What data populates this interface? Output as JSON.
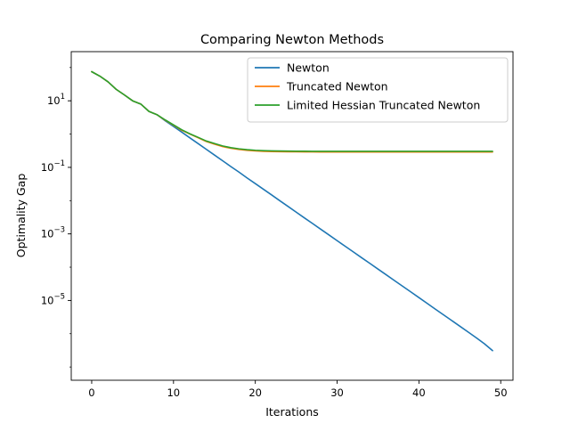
{
  "chart_data": {
    "type": "line",
    "title": "Comparing Newton Methods",
    "xlabel": "Iterations",
    "ylabel": "Optimality Gap",
    "yscale": "log",
    "xlim": [
      -2.5,
      51.5
    ],
    "ylim": [
      4e-08,
      300
    ],
    "grid": false,
    "legend_position": "top-right",
    "xticks": [
      0,
      10,
      20,
      30,
      40,
      50
    ],
    "xtick_labels": [
      "0",
      "10",
      "20",
      "30",
      "40",
      "50"
    ],
    "yticks": [
      1e-05,
      0.001,
      0.1,
      10
    ],
    "ytick_labels": [
      {
        "base": "10",
        "exp": "−5"
      },
      {
        "base": "10",
        "exp": "−3"
      },
      {
        "base": "10",
        "exp": "−1"
      },
      {
        "base": "10",
        "exp": "1"
      }
    ],
    "series": [
      {
        "name": "Newton",
        "color": "#1f77b4",
        "x": [
          0,
          1,
          2,
          3,
          4,
          5,
          6,
          7,
          8,
          9,
          10,
          11,
          12,
          13,
          14,
          15,
          16,
          17,
          18,
          19,
          20,
          21,
          22,
          23,
          24,
          25,
          26,
          27,
          28,
          29,
          30,
          31,
          32,
          33,
          34,
          35,
          36,
          37,
          38,
          39,
          40,
          41,
          42,
          43,
          44,
          45,
          46,
          47,
          48,
          49
        ],
        "y": [
          75,
          55,
          37,
          22,
          15,
          10,
          8,
          4.8,
          3.8,
          2.5,
          1.7,
          1.15,
          0.77,
          0.52,
          0.35,
          0.235,
          0.158,
          0.106,
          0.072,
          0.048,
          0.0325,
          0.0219,
          0.0148,
          0.0099,
          0.0067,
          0.0045,
          0.00303,
          0.00205,
          0.00138,
          0.00093,
          0.000627,
          0.000423,
          0.000285,
          0.000192,
          0.00013,
          8.75e-05,
          5.9e-05,
          3.98e-05,
          2.68e-05,
          1.81e-05,
          1.22e-05,
          8.2e-06,
          5.5e-06,
          3.7e-06,
          2.5e-06,
          1.68e-06,
          1.13e-06,
          7.6e-07,
          5e-07,
          3.1e-07
        ]
      },
      {
        "name": "Truncated Newton",
        "color": "#ff7f0e",
        "x": [
          0,
          1,
          2,
          3,
          4,
          5,
          6,
          7,
          8,
          9,
          10,
          11,
          12,
          13,
          14,
          15,
          16,
          17,
          18,
          19,
          20,
          21,
          22,
          23,
          24,
          25,
          26,
          27,
          28,
          29,
          30,
          31,
          32,
          33,
          34,
          35,
          36,
          37,
          38,
          39,
          40,
          41,
          42,
          43,
          44,
          45,
          46,
          47,
          48,
          49
        ],
        "y": [
          75,
          55,
          37,
          22,
          15,
          10,
          8,
          4.8,
          3.8,
          2.6,
          1.85,
          1.3,
          1.0,
          0.78,
          0.6,
          0.5,
          0.42,
          0.375,
          0.345,
          0.325,
          0.312,
          0.304,
          0.299,
          0.296,
          0.294,
          0.293,
          0.292,
          0.291,
          0.29,
          0.29,
          0.29,
          0.29,
          0.29,
          0.29,
          0.29,
          0.29,
          0.29,
          0.29,
          0.29,
          0.29,
          0.29,
          0.29,
          0.29,
          0.29,
          0.29,
          0.29,
          0.29,
          0.29,
          0.29,
          0.29
        ]
      },
      {
        "name": "Limited Hessian Truncated Newton",
        "color": "#2ca02c",
        "x": [
          0,
          1,
          2,
          3,
          4,
          5,
          6,
          7,
          8,
          9,
          10,
          11,
          12,
          13,
          14,
          15,
          16,
          17,
          18,
          19,
          20,
          21,
          22,
          23,
          24,
          25,
          26,
          27,
          28,
          29,
          30,
          31,
          32,
          33,
          34,
          35,
          36,
          37,
          38,
          39,
          40,
          41,
          42,
          43,
          44,
          45,
          46,
          47,
          48,
          49
        ],
        "y": [
          75,
          55,
          37,
          22,
          15,
          10,
          8,
          4.8,
          3.8,
          2.65,
          1.9,
          1.35,
          1.02,
          0.8,
          0.62,
          0.52,
          0.44,
          0.39,
          0.36,
          0.34,
          0.326,
          0.318,
          0.313,
          0.31,
          0.308,
          0.306,
          0.305,
          0.304,
          0.303,
          0.303,
          0.303,
          0.303,
          0.303,
          0.303,
          0.303,
          0.303,
          0.303,
          0.303,
          0.303,
          0.303,
          0.303,
          0.303,
          0.303,
          0.303,
          0.303,
          0.303,
          0.303,
          0.303,
          0.303,
          0.303
        ]
      }
    ]
  }
}
